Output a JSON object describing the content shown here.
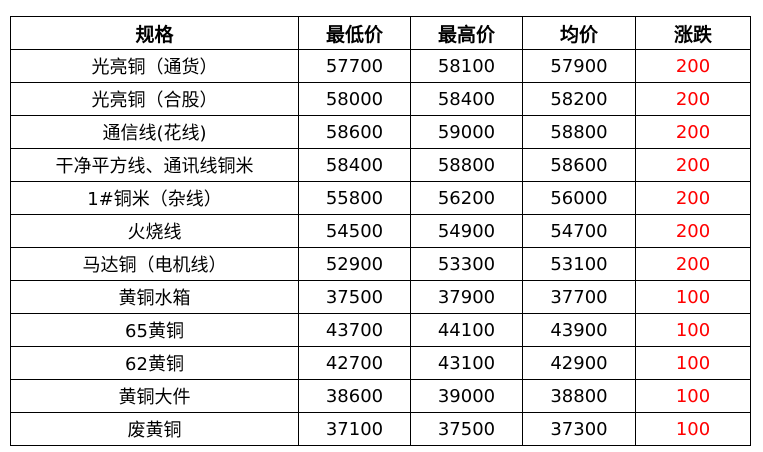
{
  "table": {
    "headers": [
      "规格",
      "最低价",
      "最高价",
      "均价",
      "涨跌"
    ],
    "rows": [
      [
        "光亮铜（通货）",
        "57700",
        "58100",
        "57900",
        "200"
      ],
      [
        "光亮铜（合股）",
        "58000",
        "58400",
        "58200",
        "200"
      ],
      [
        "通信线(花线)",
        "58600",
        "59000",
        "58800",
        "200"
      ],
      [
        "干净平方线、通讯线铜米",
        "58400",
        "58800",
        "58600",
        "200"
      ],
      [
        "1#铜米（杂线）",
        "55800",
        "56200",
        "56000",
        "200"
      ],
      [
        "火烧线",
        "54500",
        "54900",
        "54700",
        "200"
      ],
      [
        "马达铜（电机线）",
        "52900",
        "53300",
        "53100",
        "200"
      ],
      [
        "黄铜水箱",
        "37500",
        "37900",
        "37700",
        "100"
      ],
      [
        "65黄铜",
        "43700",
        "44100",
        "43900",
        "100"
      ],
      [
        "62黄铜",
        "42700",
        "43100",
        "42900",
        "100"
      ],
      [
        "黄铜大件",
        "38600",
        "39000",
        "38800",
        "100"
      ],
      [
        "废黄铜",
        "37100",
        "37500",
        "37300",
        "100"
      ]
    ],
    "change_color": "#ff0000"
  }
}
